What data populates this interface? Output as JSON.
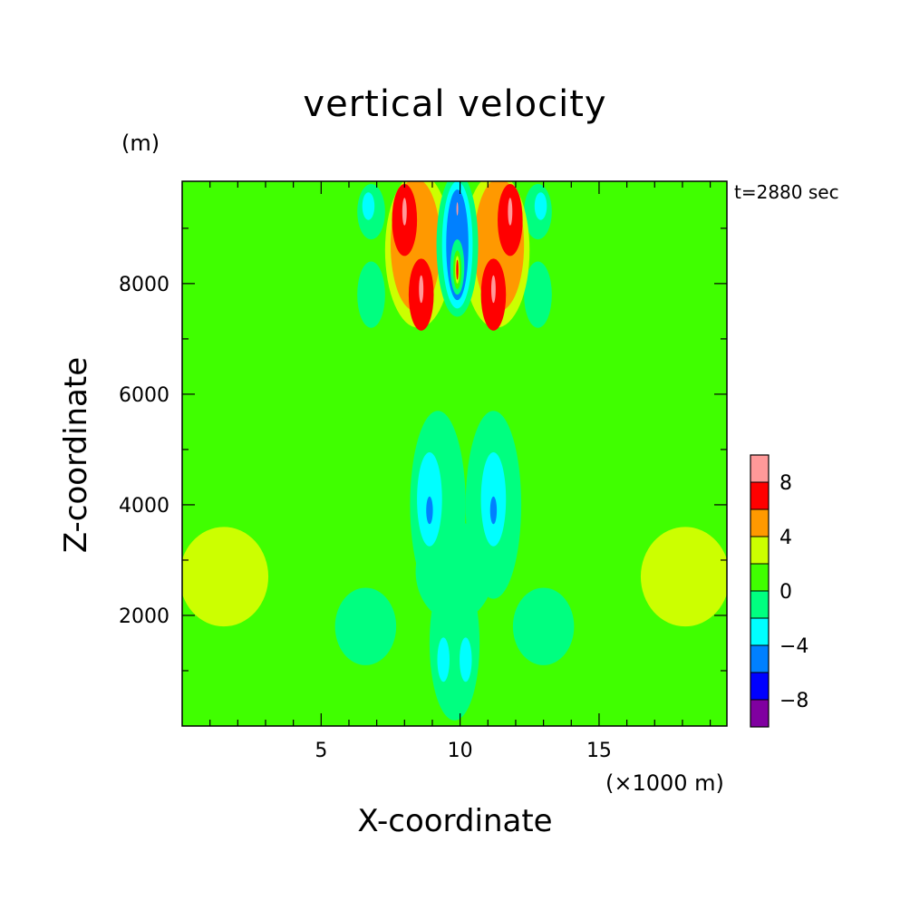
{
  "chart_data": {
    "type": "heatmap",
    "title": "vertical velocity",
    "xlabel": "X-coordinate",
    "ylabel": "Z-coordinate",
    "x_unit": "(×1000 m)",
    "y_unit": "(m)",
    "annotation": "t=2880 sec",
    "xlim": [
      0,
      19.6
    ],
    "ylim": [
      0,
      9850
    ],
    "x_ticks": [
      5,
      10,
      15
    ],
    "x_tick_labels": [
      "5",
      "10",
      "15"
    ],
    "y_ticks": [
      2000,
      4000,
      6000,
      8000
    ],
    "y_tick_labels": [
      "2000",
      "4000",
      "6000",
      "8000"
    ],
    "colorbar": {
      "levels": [
        -10,
        -8,
        -6,
        -4,
        -2,
        0,
        2,
        4,
        6,
        8,
        10
      ],
      "labels": [
        "8",
        "4",
        "0",
        "−4",
        "−8"
      ],
      "label_values": [
        8,
        4,
        0,
        -4,
        -8
      ],
      "colors": [
        "#8000a0",
        "#0000ff",
        "#0080ff",
        "#00ffff",
        "#00ff80",
        "#40ff00",
        "#ccff00",
        "#ff9900",
        "#ff0000",
        "#ff9999"
      ]
    },
    "regions": [
      {
        "level": 2,
        "cx": 1.5,
        "cz": 2700,
        "rx": 1.6,
        "rz": 900
      },
      {
        "level": 2,
        "cx": 18.1,
        "cz": 2700,
        "rx": 1.6,
        "rz": 900
      },
      {
        "level": 0,
        "cx": 4.9,
        "cz": 7800,
        "rx": 2.4,
        "rz": 2400
      },
      {
        "level": 0,
        "cx": 14.7,
        "cz": 7800,
        "rx": 2.4,
        "rz": 2400
      },
      {
        "level": 0,
        "cx": 9.8,
        "cz": 3500,
        "rx": 3.8,
        "rz": 3900
      },
      {
        "level": -2,
        "cx": 9.2,
        "cz": 4000,
        "rx": 1.0,
        "rz": 1700
      },
      {
        "level": -2,
        "cx": 11.2,
        "cz": 4000,
        "rx": 1.0,
        "rz": 1700
      },
      {
        "level": -2,
        "cx": 6.6,
        "cz": 1800,
        "rx": 1.1,
        "rz": 700
      },
      {
        "level": -2,
        "cx": 13.0,
        "cz": 1800,
        "rx": 1.1,
        "rz": 700
      },
      {
        "level": -2,
        "cx": 9.8,
        "cz": 1500,
        "rx": 0.9,
        "rz": 1400
      },
      {
        "level": -2,
        "cx": 9.8,
        "cz": 2800,
        "rx": 1.4,
        "rz": 900
      },
      {
        "level": -2,
        "cx": 6.8,
        "cz": 7800,
        "rx": 0.5,
        "rz": 600
      },
      {
        "level": -2,
        "cx": 12.8,
        "cz": 7800,
        "rx": 0.5,
        "rz": 600
      },
      {
        "level": -2,
        "cx": 6.8,
        "cz": 9300,
        "rx": 0.5,
        "rz": 500
      },
      {
        "level": -2,
        "cx": 12.8,
        "cz": 9300,
        "rx": 0.5,
        "rz": 500
      },
      {
        "level": -4,
        "cx": 8.9,
        "cz": 4100,
        "rx": 0.45,
        "rz": 850
      },
      {
        "level": -4,
        "cx": 11.2,
        "cz": 4100,
        "rx": 0.45,
        "rz": 850
      },
      {
        "level": -4,
        "cx": 6.7,
        "cz": 9400,
        "rx": 0.22,
        "rz": 250
      },
      {
        "level": -4,
        "cx": 12.9,
        "cz": 9400,
        "rx": 0.22,
        "rz": 250
      },
      {
        "level": -4,
        "cx": 9.4,
        "cz": 1200,
        "rx": 0.22,
        "rz": 400
      },
      {
        "level": -4,
        "cx": 10.2,
        "cz": 1200,
        "rx": 0.22,
        "rz": 400
      },
      {
        "level": -6,
        "cx": 8.9,
        "cz": 3900,
        "rx": 0.12,
        "rz": 250
      },
      {
        "level": -6,
        "cx": 11.2,
        "cz": 3900,
        "rx": 0.12,
        "rz": 250
      },
      {
        "level": 2,
        "cx": 8.5,
        "cz": 8600,
        "rx": 1.2,
        "rz": 1400
      },
      {
        "level": 2,
        "cx": 11.3,
        "cz": 8600,
        "rx": 1.2,
        "rz": 1400
      },
      {
        "level": 4,
        "cx": 8.4,
        "cz": 8700,
        "rx": 0.9,
        "rz": 1200
      },
      {
        "level": 4,
        "cx": 11.4,
        "cz": 8700,
        "rx": 0.9,
        "rz": 1200
      },
      {
        "level": 6,
        "cx": 8.0,
        "cz": 9150,
        "rx": 0.45,
        "rz": 650
      },
      {
        "level": 6,
        "cx": 8.6,
        "cz": 7800,
        "rx": 0.45,
        "rz": 650
      },
      {
        "level": 6,
        "cx": 11.8,
        "cz": 9150,
        "rx": 0.45,
        "rz": 650
      },
      {
        "level": 6,
        "cx": 11.2,
        "cz": 7800,
        "rx": 0.45,
        "rz": 650
      },
      {
        "level": 8,
        "cx": 8.0,
        "cz": 9300,
        "rx": 0.08,
        "rz": 250
      },
      {
        "level": 8,
        "cx": 8.6,
        "cz": 7900,
        "rx": 0.08,
        "rz": 250
      },
      {
        "level": 8,
        "cx": 11.8,
        "cz": 9300,
        "rx": 0.08,
        "rz": 250
      },
      {
        "level": 8,
        "cx": 11.2,
        "cz": 7900,
        "rx": 0.08,
        "rz": 250
      },
      {
        "level": -2,
        "cx": 9.9,
        "cz": 8700,
        "rx": 0.75,
        "rz": 1300
      },
      {
        "level": -4,
        "cx": 9.9,
        "cz": 8700,
        "rx": 0.55,
        "rz": 1150
      },
      {
        "level": -6,
        "cx": 9.9,
        "cz": 8700,
        "rx": 0.4,
        "rz": 1000
      },
      {
        "level": -2,
        "cx": 9.9,
        "cz": 8300,
        "rx": 0.25,
        "rz": 500
      },
      {
        "level": 0,
        "cx": 9.9,
        "cz": 8250,
        "rx": 0.15,
        "rz": 350
      },
      {
        "level": 2,
        "cx": 9.9,
        "cz": 8250,
        "rx": 0.08,
        "rz": 250
      },
      {
        "level": 6,
        "cx": 9.9,
        "cz": 8250,
        "rx": 0.04,
        "rz": 180
      },
      {
        "level": 8,
        "cx": 9.9,
        "cz": 9350,
        "rx": 0.03,
        "rz": 120
      }
    ]
  }
}
